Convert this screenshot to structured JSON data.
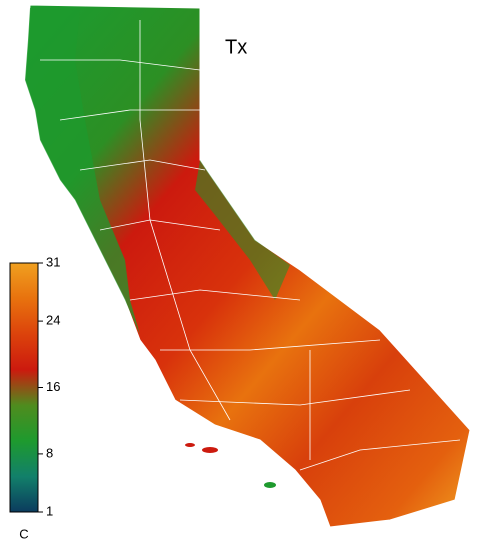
{
  "map": {
    "title": "Tx",
    "colorbar": {
      "label": "C",
      "lim": [
        1,
        31
      ],
      "ticks": [
        1,
        8,
        16,
        24,
        31
      ],
      "colors": [
        "#0b3b5e",
        "#12806a",
        "#1e9a2e",
        "#4f8c1e",
        "#cc1a0e",
        "#dc430c",
        "#e8720e",
        "#f0a020"
      ]
    }
  }
}
